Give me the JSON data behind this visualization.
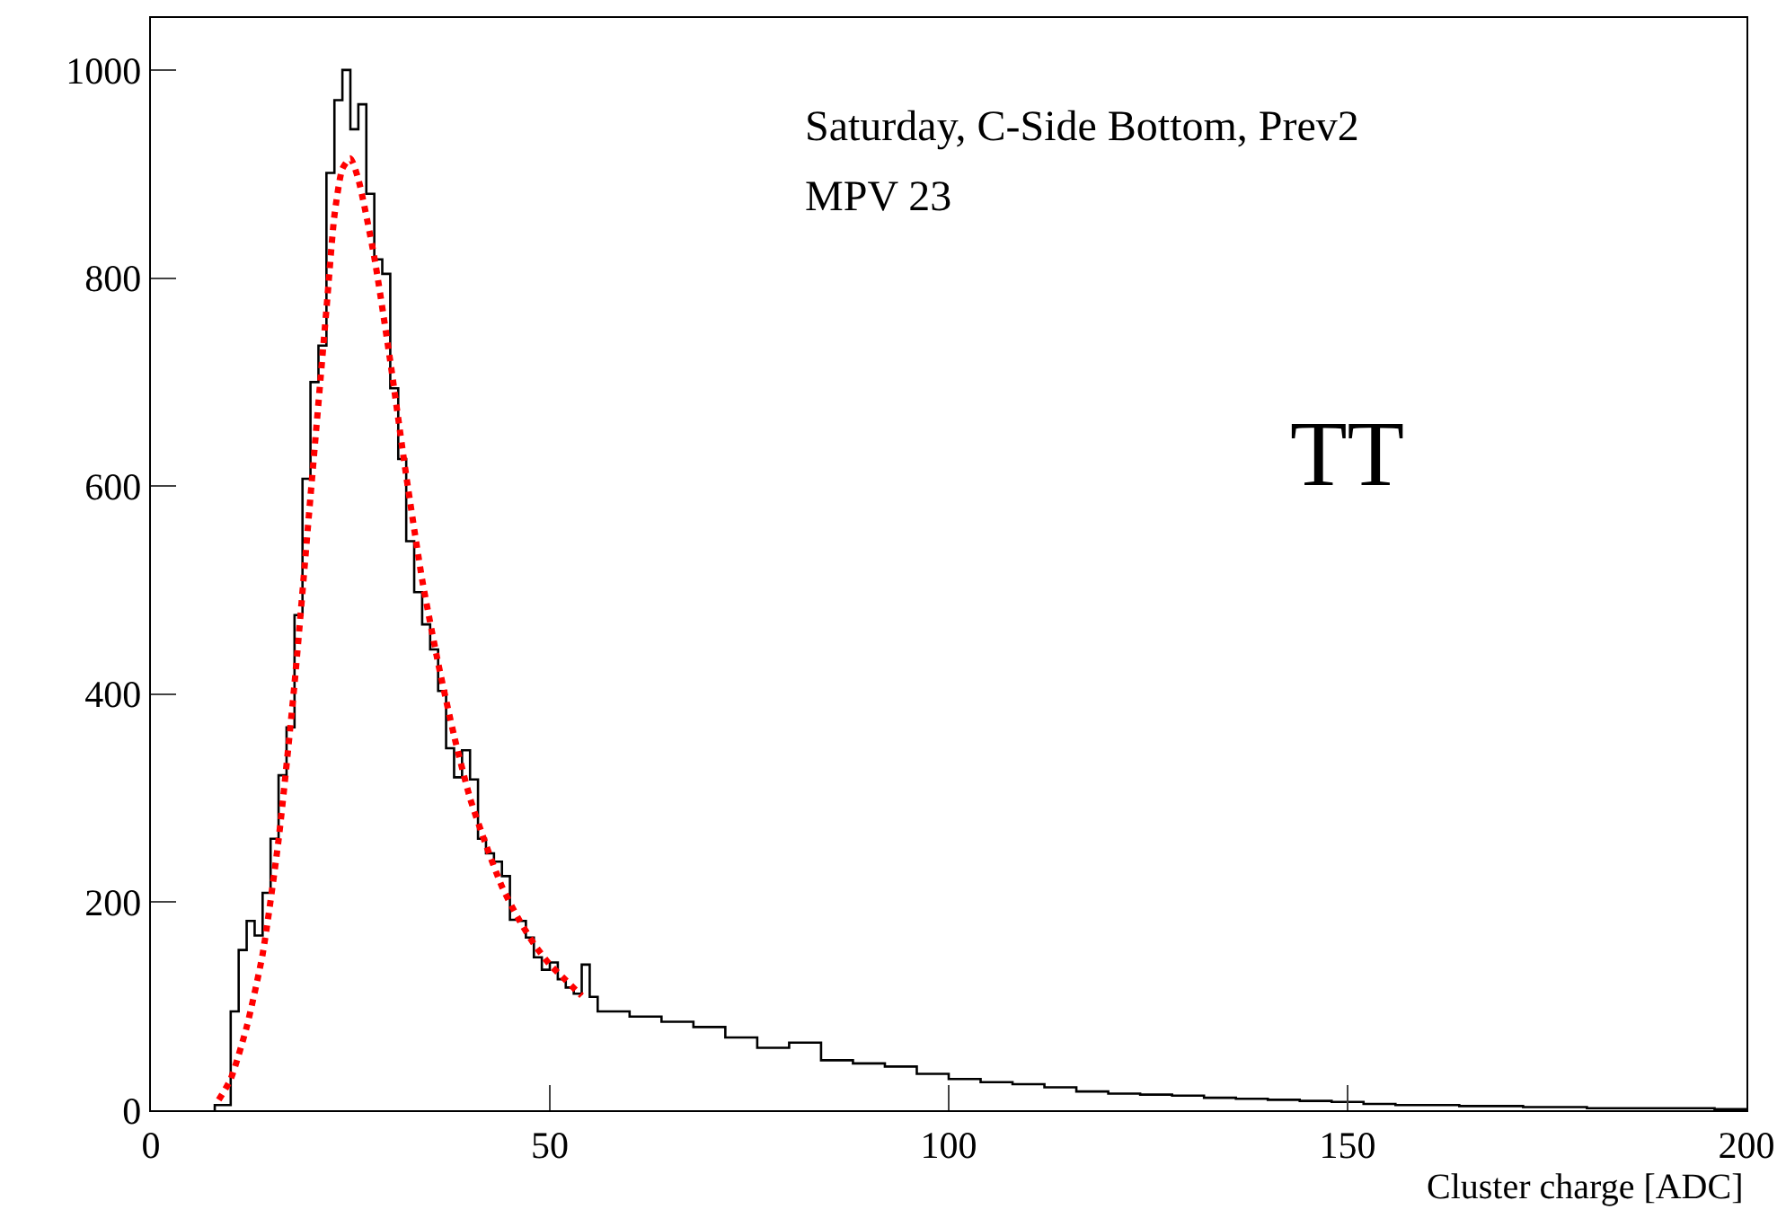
{
  "chart_data": {
    "type": "histogram",
    "xlabel": "Cluster charge [ADC]",
    "annotations": [
      "Saturday, C-Side Bottom, Prev2",
      "MPV 23",
      "TT"
    ],
    "bins": [
      8,
      9,
      10,
      11,
      12,
      13,
      14,
      15,
      16,
      17,
      18,
      19,
      20,
      21,
      22,
      23,
      24,
      25,
      26,
      27,
      28,
      29,
      30,
      31,
      32,
      33,
      34,
      35,
      36,
      37,
      38,
      39,
      40,
      41,
      42,
      43,
      44,
      45,
      46,
      47,
      48,
      49,
      50,
      51,
      52,
      53,
      54,
      55,
      56,
      60,
      64,
      68,
      72,
      76,
      80,
      84,
      88,
      92,
      96,
      100,
      104,
      108,
      112,
      116,
      120,
      124,
      128,
      132,
      136,
      140,
      144,
      148,
      152,
      156,
      160,
      164,
      168,
      172,
      176,
      180,
      184,
      188,
      192,
      196,
      200
    ],
    "series": [
      {
        "type": "histogram",
        "color": "#000000",
        "values": [
          5,
          5,
          95,
          154,
          182,
          168,
          209,
          261,
          322,
          368,
          476,
          607,
          700,
          735,
          901,
          971,
          1000,
          943,
          967,
          881,
          818,
          804,
          694,
          626,
          547,
          498,
          467,
          443,
          403,
          348,
          320,
          346,
          318,
          261,
          247,
          239,
          225,
          183,
          182,
          166,
          147,
          135,
          142,
          126,
          118,
          112,
          140,
          109,
          95,
          90,
          85,
          80,
          70,
          60,
          65,
          48,
          45,
          42,
          35,
          30,
          27,
          25,
          22,
          18,
          16,
          15,
          14,
          12,
          11,
          10,
          9,
          8,
          6,
          5,
          5,
          4,
          4,
          3,
          3,
          2,
          2,
          2,
          2,
          1
        ]
      },
      {
        "type": "line",
        "color": "#ff0000",
        "line_style": "dotted",
        "x": [
          8.5,
          10,
          12,
          14,
          16,
          18,
          20,
          22,
          23,
          24,
          25,
          26,
          28,
          30,
          32,
          34,
          36,
          38,
          40,
          42,
          44,
          46,
          48,
          50,
          52,
          54
        ],
        "values": [
          10,
          30,
          80,
          150,
          260,
          410,
          590,
          770,
          860,
          905,
          915,
          895,
          820,
          720,
          610,
          510,
          430,
          360,
          300,
          255,
          215,
          185,
          160,
          140,
          125,
          110
        ]
      }
    ],
    "xlim": [
      0,
      200
    ],
    "xticks": [
      0,
      50,
      100,
      150,
      200
    ],
    "ylim": [
      0,
      1050
    ],
    "yticks": [
      0,
      200,
      400,
      600,
      800,
      1000
    ]
  }
}
